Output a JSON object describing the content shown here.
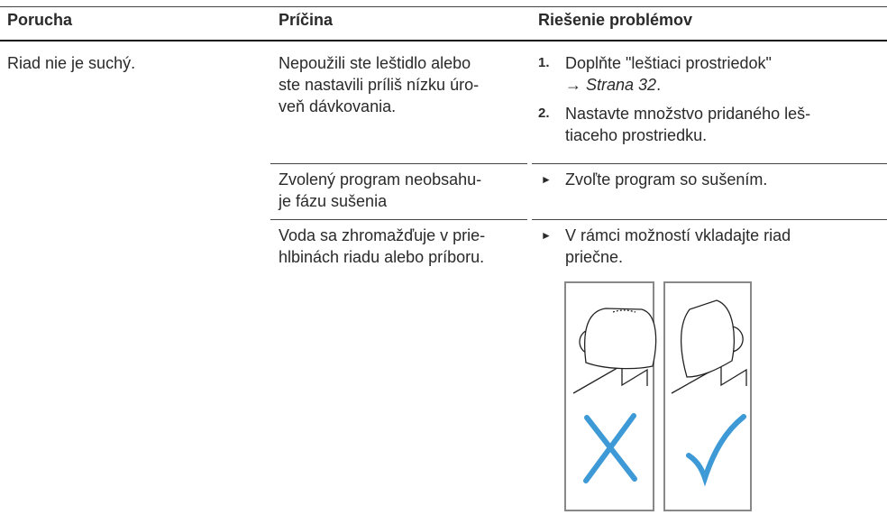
{
  "header": {
    "columns": [
      "Porucha",
      "Príčina",
      "Riešenie problémov"
    ]
  },
  "table": {
    "problem": "Riad nie je suchý.",
    "rows": [
      {
        "cause": [
          "Nepoužili ste leštidlo alebo",
          "ste nastavili príliš nízku úro-",
          "veň dávkovania."
        ],
        "steps": [
          {
            "number": "1.",
            "lines": [
              "Doplňte \"leštiaci prostriedok\""
            ],
            "reference": {
              "arrow": "→",
              "page": "Strana 32",
              "end": "."
            }
          },
          {
            "number": "2.",
            "lines": [
              "Nastavte množstvo pridaného leš-",
              "tiaceho prostriedku."
            ]
          }
        ]
      },
      {
        "cause": [
          "Zvolený program neobsahu-",
          "je fázu sušenia"
        ],
        "bullet": "►",
        "solution": [
          "Zvoľte program so sušením."
        ]
      },
      {
        "cause": [
          "Voda sa zhromažďuje v prie-",
          "hlbinách riadu alebo príboru."
        ],
        "bullet": "►",
        "solution": [
          "V rámci možností vkladajte riad",
          "priečne."
        ]
      }
    ]
  }
}
